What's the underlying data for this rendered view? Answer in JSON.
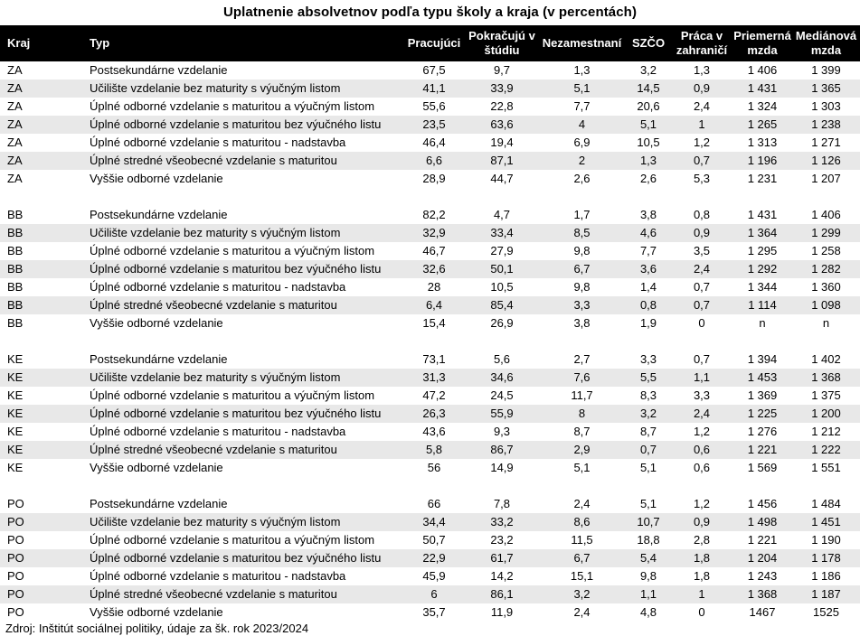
{
  "title": "Uplatnenie absolvetnov podľa typu školy a kraja (v percentách)",
  "source": "Zdroj: Inštitút sociálnej politiky, údaje za šk. rok 2023/2024",
  "columns": [
    "Kraj",
    "Typ",
    "Pracujúci",
    "Pokračujú v\nštúdiu",
    "Nezamestnaní",
    "SZČO",
    "Práca v\nzahraničí",
    "Priemerná\nmzda",
    "Mediánová\nmzda"
  ],
  "table": {
    "sections": [
      {
        "kraj": "ZA",
        "rows": [
          {
            "typ": "Postsekundárne vzdelanie",
            "values": [
              "67,5",
              "9,7",
              "1,3",
              "3,2",
              "1,3",
              "1 406",
              "1 399"
            ]
          },
          {
            "typ": "Učilište vzdelanie bez maturity s výučným listom",
            "values": [
              "41,1",
              "33,9",
              "5,1",
              "14,5",
              "0,9",
              "1 431",
              "1 365"
            ]
          },
          {
            "typ": "Úplné odborné vzdelanie s maturitou a výučným listom",
            "values": [
              "55,6",
              "22,8",
              "7,7",
              "20,6",
              "2,4",
              "1 324",
              "1 303"
            ]
          },
          {
            "typ": "Úplné odborné vzdelanie s maturitou bez výučného listu",
            "values": [
              "23,5",
              "63,6",
              "4",
              "5,1",
              "1",
              "1 265",
              "1 238"
            ]
          },
          {
            "typ": "Úplné odborné vzdelanie s maturitou  - nadstavba",
            "values": [
              "46,4",
              "19,4",
              "6,9",
              "10,5",
              "1,2",
              "1 313",
              "1 271"
            ]
          },
          {
            "typ": "Úplné stredné všeobecné vzdelanie s maturitou",
            "values": [
              "6,6",
              "87,1",
              "2",
              "1,3",
              "0,7",
              "1 196",
              "1 126"
            ]
          },
          {
            "typ": "Vyššie odborné vzdelanie",
            "values": [
              "28,9",
              "44,7",
              "2,6",
              "2,6",
              "5,3",
              "1 231",
              "1 207"
            ]
          }
        ]
      },
      {
        "kraj": "BB",
        "rows": [
          {
            "typ": "Postsekundárne vzdelanie",
            "values": [
              "82,2",
              "4,7",
              "1,7",
              "3,8",
              "0,8",
              "1 431",
              "1 406"
            ]
          },
          {
            "typ": "Učilište vzdelanie bez maturity s výučným listom",
            "values": [
              "32,9",
              "33,4",
              "8,5",
              "4,6",
              "0,9",
              "1 364",
              "1 299"
            ]
          },
          {
            "typ": "Úplné odborné vzdelanie s maturitou a výučným listom",
            "values": [
              "46,7",
              "27,9",
              "9,8",
              "7,7",
              "3,5",
              "1 295",
              "1 258"
            ]
          },
          {
            "typ": "Úplné odborné vzdelanie s maturitou bez výučného listu",
            "values": [
              "32,6",
              "50,1",
              "6,7",
              "3,6",
              "2,4",
              "1 292",
              "1 282"
            ]
          },
          {
            "typ": "Úplné odborné vzdelanie s maturitou  - nadstavba",
            "values": [
              "28",
              "10,5",
              "9,8",
              "1,4",
              "0,7",
              "1 344",
              "1 360"
            ]
          },
          {
            "typ": "Úplné stredné všeobecné vzdelanie s maturitou",
            "values": [
              "6,4",
              "85,4",
              "3,3",
              "0,8",
              "0,7",
              "1 114",
              "1 098"
            ]
          },
          {
            "typ": "Vyššie odborné vzdelanie",
            "values": [
              "15,4",
              "26,9",
              "3,8",
              "1,9",
              "0",
              "n",
              "n"
            ]
          }
        ]
      },
      {
        "kraj": "KE",
        "rows": [
          {
            "typ": "Postsekundárne vzdelanie",
            "values": [
              "73,1",
              "5,6",
              "2,7",
              "3,3",
              "0,7",
              "1 394",
              "1 402"
            ]
          },
          {
            "typ": "Učilište vzdelanie bez maturity s výučným listom",
            "values": [
              "31,3",
              "34,6",
              "7,6",
              "5,5",
              "1,1",
              "1 453",
              "1 368"
            ]
          },
          {
            "typ": "Úplné odborné vzdelanie s maturitou a výučným listom",
            "values": [
              "47,2",
              "24,5",
              "11,7",
              "8,3",
              "3,3",
              "1 369",
              "1 375"
            ]
          },
          {
            "typ": "Úplné odborné vzdelanie s maturitou bez výučného listu",
            "values": [
              "26,3",
              "55,9",
              "8",
              "3,2",
              "2,4",
              "1 225",
              "1 200"
            ]
          },
          {
            "typ": "Úplné odborné vzdelanie s maturitou  - nadstavba",
            "values": [
              "43,6",
              "9,3",
              "8,7",
              "8,7",
              "1,2",
              "1 276",
              "1 212"
            ]
          },
          {
            "typ": "Úplné stredné všeobecné vzdelanie s maturitou",
            "values": [
              "5,8",
              "86,7",
              "2,9",
              "0,7",
              "0,6",
              "1 221",
              "1 222"
            ]
          },
          {
            "typ": "Vyššie odborné vzdelanie",
            "values": [
              "56",
              "14,9",
              "5,1",
              "5,1",
              "0,6",
              "1 569",
              "1 551"
            ]
          }
        ]
      },
      {
        "kraj": "PO",
        "rows": [
          {
            "typ": "Postsekundárne vzdelanie",
            "values": [
              "66",
              "7,8",
              "2,4",
              "5,1",
              "1,2",
              "1 456",
              "1 484"
            ]
          },
          {
            "typ": "Učilište vzdelanie bez maturity s výučným listom",
            "values": [
              "34,4",
              "33,2",
              "8,6",
              "10,7",
              "0,9",
              "1 498",
              "1 451"
            ]
          },
          {
            "typ": "Úplné odborné vzdelanie s maturitou a výučným listom",
            "values": [
              "50,7",
              "23,2",
              "11,5",
              "18,8",
              "2,8",
              "1 221",
              "1 190"
            ]
          },
          {
            "typ": "Úplné odborné vzdelanie s maturitou bez výučného listu",
            "values": [
              "22,9",
              "61,7",
              "6,7",
              "5,4",
              "1,8",
              "1 204",
              "1 178"
            ]
          },
          {
            "typ": "Úplné odborné vzdelanie s maturitou  - nadstavba",
            "values": [
              "45,9",
              "14,2",
              "15,1",
              "9,8",
              "1,8",
              "1 243",
              "1 186"
            ]
          },
          {
            "typ": "Úplné stredné všeobecné vzdelanie s maturitou",
            "values": [
              "6",
              "86,1",
              "3,2",
              "1,1",
              "1",
              "1 368",
              "1 187"
            ]
          },
          {
            "typ": "Vyššie odborné vzdelanie",
            "values": [
              "35,7",
              "11,9",
              "2,4",
              "4,8",
              "0",
              "1467",
              "1525"
            ]
          }
        ]
      }
    ]
  },
  "colors": {
    "header_bg": "#000000",
    "header_text": "#ffffff",
    "stripe_bg": "#e8e8e8",
    "body_text": "#000000"
  }
}
